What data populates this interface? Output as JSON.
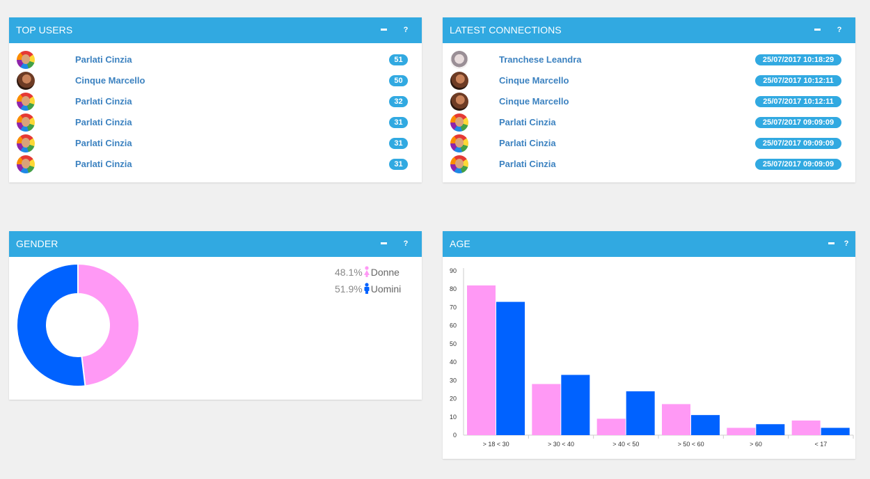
{
  "top_users": {
    "title": "TOP USERS",
    "minimize": "−",
    "help": "?",
    "rows": [
      {
        "name": "Parlati Cinzia",
        "count": "51"
      },
      {
        "name": "Cinque Marcello",
        "count": "50"
      },
      {
        "name": "Parlati Cinzia",
        "count": "32"
      },
      {
        "name": "Parlati Cinzia",
        "count": "31"
      },
      {
        "name": "Parlati Cinzia",
        "count": "31"
      },
      {
        "name": "Parlati Cinzia",
        "count": "31"
      }
    ]
  },
  "latest_connections": {
    "title": "LATEST CONNECTIONS",
    "minimize": "−",
    "help": "?",
    "rows": [
      {
        "name": "Tranchese Leandra",
        "time": "25/07/2017 10:18:29"
      },
      {
        "name": "Cinque Marcello",
        "time": "25/07/2017 10:12:11"
      },
      {
        "name": "Cinque Marcello",
        "time": "25/07/2017 10:12:11"
      },
      {
        "name": "Parlati Cinzia",
        "time": "25/07/2017 09:09:09"
      },
      {
        "name": "Parlati Cinzia",
        "time": "25/07/2017 09:09:09"
      },
      {
        "name": "Parlati Cinzia",
        "time": "25/07/2017 09:09:09"
      }
    ]
  },
  "gender": {
    "title": "GENDER",
    "minimize": "−",
    "help": "?",
    "legend": [
      {
        "pct": "48.1%",
        "label": "Donne"
      },
      {
        "pct": "51.9%",
        "label": "Uomini"
      }
    ]
  },
  "age": {
    "title": "AGE",
    "minimize": "−",
    "help": "?"
  },
  "colors": {
    "header": "#31a9e1",
    "female": "#ff99f5",
    "male": "#0062ff",
    "link": "#3c82c0"
  },
  "chart_data": [
    {
      "type": "pie",
      "donut": true,
      "categories": [
        "Donne",
        "Uomini"
      ],
      "values": [
        48.1,
        51.9
      ],
      "colors": [
        "#ff99f5",
        "#0062ff"
      ]
    },
    {
      "type": "bar",
      "categories": [
        "> 18 < 30",
        "> 30 < 40",
        "> 40 < 50",
        "> 50 < 60",
        "> 60",
        "< 17"
      ],
      "series": [
        {
          "values": [
            82,
            28,
            9,
            17,
            4,
            8
          ],
          "color": "#ff99f5"
        },
        {
          "values": [
            73,
            33,
            24,
            11,
            6,
            4
          ],
          "color": "#0062ff"
        }
      ],
      "ylim": [
        0,
        90
      ],
      "yticks": [
        0,
        10,
        20,
        30,
        40,
        50,
        60,
        70,
        80,
        90
      ],
      "grid": false
    }
  ]
}
